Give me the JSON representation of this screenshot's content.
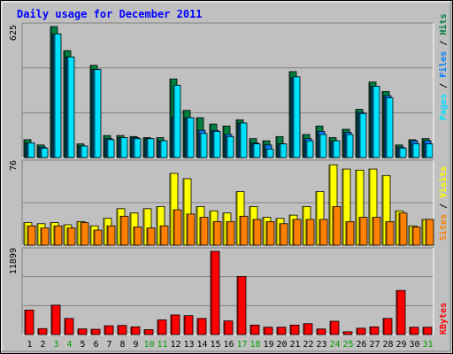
{
  "title": "Daily usage for December 2011",
  "colors": {
    "background": "#c0c0c0",
    "plot_bg": "#c0c0c0",
    "title": "#0000ff",
    "hits": "#008040",
    "files": "#0080ff",
    "pages": "#00e0ff",
    "visits": "#ffff00",
    "sites": "#ff8000",
    "kbytes": "#ff0000",
    "weekend_label": "#00a000"
  },
  "panels": {
    "top": {
      "scale_label": "625",
      "legend": [
        "Pages",
        "/",
        "Files",
        "/",
        "Hits"
      ]
    },
    "middle": {
      "scale_label": "76",
      "legend": [
        "Sites",
        "/",
        "Visits"
      ]
    },
    "bottom": {
      "scale_label": "11899",
      "legend": [
        "KBytes"
      ]
    }
  },
  "chart_data": {
    "type": "bar",
    "title": "Daily usage for December 2011",
    "categories": [
      "1",
      "2",
      "3",
      "4",
      "5",
      "6",
      "7",
      "8",
      "9",
      "10",
      "11",
      "12",
      "13",
      "14",
      "15",
      "16",
      "17",
      "18",
      "19",
      "20",
      "21",
      "22",
      "23",
      "24",
      "25",
      "26",
      "27",
      "28",
      "29",
      "30",
      "31"
    ],
    "weekend_days": [
      "3",
      "4",
      "10",
      "11",
      "17",
      "18",
      "24",
      "25",
      "31"
    ],
    "panels": [
      {
        "name": "top",
        "ymax": 625,
        "series": [
          {
            "name": "Hits",
            "values": [
              85,
              60,
              625,
              510,
              65,
              440,
              105,
              105,
              100,
              95,
              95,
              375,
              225,
              190,
              160,
              150,
              180,
              90,
              80,
              100,
              410,
              110,
              150,
              95,
              135,
              230,
              360,
              315,
              60,
              85,
              90
            ]
          },
          {
            "name": "Files",
            "values": [
              70,
              50,
              590,
              480,
              55,
              420,
              90,
              95,
              95,
              90,
              80,
              190,
              190,
              130,
              130,
              110,
              165,
              70,
              60,
              65,
              380,
              90,
              125,
              80,
              120,
              215,
              340,
              295,
              50,
              80,
              80
            ]
          },
          {
            "name": "Pages",
            "values": [
              70,
              45,
              590,
              480,
              55,
              420,
              85,
              95,
              90,
              90,
              80,
              345,
              190,
              115,
              125,
              100,
              165,
              65,
              40,
              65,
              385,
              80,
              110,
              80,
              110,
              210,
              340,
              285,
              45,
              65,
              65
            ]
          }
        ]
      },
      {
        "name": "middle",
        "ymax": 76,
        "series": [
          {
            "name": "Visits",
            "values": [
              21,
              20,
              21,
              19,
              22,
              18,
              25,
              34,
              30,
              34,
              36,
              67,
              62,
              36,
              32,
              30,
              50,
              36,
              26,
              25,
              28,
              36,
              50,
              75,
              71,
              70,
              71,
              65,
              32,
              18,
              24
            ]
          },
          {
            "name": "Sites",
            "values": [
              18,
              16,
              18,
              16,
              21,
              14,
              18,
              27,
              17,
              16,
              18,
              33,
              29,
              26,
              22,
              22,
              27,
              24,
              22,
              20,
              24,
              24,
              24,
              36,
              22,
              26,
              26,
              22,
              30,
              17,
              24
            ]
          }
        ]
      },
      {
        "name": "bottom",
        "ymax": 11899,
        "series": [
          {
            "name": "KBytes",
            "values": [
              3500,
              850,
              4200,
              2300,
              800,
              750,
              1250,
              1300,
              1100,
              700,
              2100,
              2800,
              2700,
              2300,
              11899,
              1950,
              8300,
              1350,
              1050,
              1050,
              1350,
              1550,
              800,
              1900,
              400,
              900,
              1100,
              2300,
              6300,
              1050,
              1050
            ]
          }
        ]
      }
    ]
  }
}
